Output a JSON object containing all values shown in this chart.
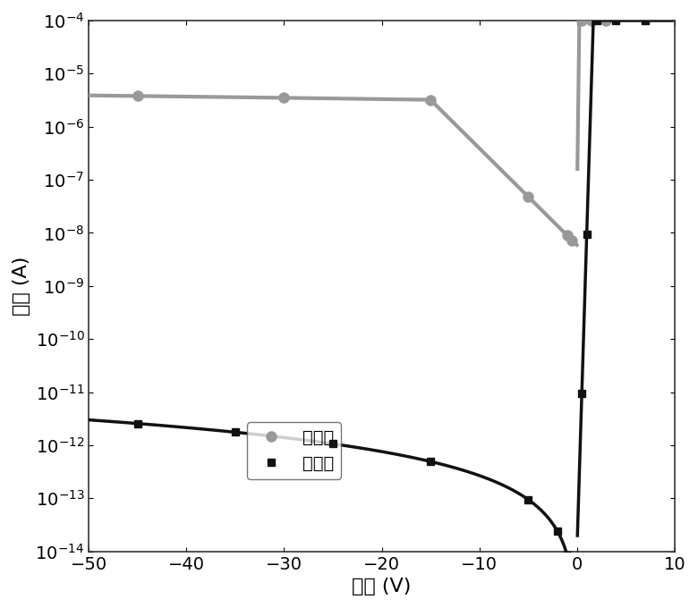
{
  "title": "",
  "xlabel": "电压 (V)",
  "ylabel": "电流 (A)",
  "xlim": [
    -50,
    10
  ],
  "ylim_log": [
    -14,
    -4
  ],
  "background_color": "#ffffff",
  "dark_color": "#111111",
  "photo_color": "#999999",
  "dark_label": "暗电流",
  "photo_label": "光电流",
  "figsize": [
    7.8,
    6.8
  ],
  "dpi": 100
}
